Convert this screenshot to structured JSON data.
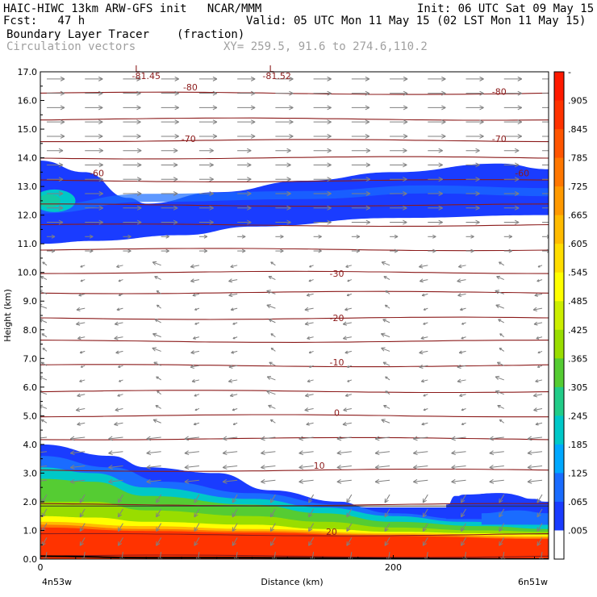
{
  "header": {
    "line1_left": "HAIC-HIWC 13km ARW-GFS init   NCAR/MMM",
    "line1_right": "Init: 06 UTC Sat 09 May 15",
    "line2_left": "Fcst:   47 h",
    "line2_right": "Valid: 05 UTC Mon 11 May 15 (02 LST Mon 11 May 15)",
    "line3_left": "Boundary Layer Tracer",
    "line3_mid": "(fraction)",
    "line4_left": "Circulation vectors",
    "line4_mid": "XY= 259.5, 91.6 to 274.6,110.2"
  },
  "colors": {
    "contour": "#8b1a1a",
    "vector": "#808080"
  },
  "chart_data": {
    "type": "heatmap",
    "title": "Boundary Layer Tracer",
    "units": "(fraction)",
    "xlabel": "Distance (km)",
    "ylabel": "Height (km)",
    "xlim": [
      0,
      288
    ],
    "ylim": [
      0,
      17
    ],
    "x_ticks": [
      0,
      200
    ],
    "x_end_labels": {
      "left": "4n53w",
      "right": "6n51w"
    },
    "y_ticks": [
      "0.0",
      "1.0",
      "2.0",
      "3.0",
      "4.0",
      "5.0",
      "6.0",
      "7.0",
      "8.0",
      "9.0",
      "10.0",
      "11.0",
      "12.0",
      "13.0",
      "14.0",
      "15.0",
      "16.0",
      "17.0"
    ],
    "colorbar": {
      "labels": [
        "-",
        ".905",
        ".845",
        ".785",
        ".725",
        ".665",
        ".605",
        ".545",
        ".485",
        ".425",
        ".365",
        ".305",
        ".245",
        ".185",
        ".125",
        ".065",
        ".005"
      ],
      "colors": [
        "#ff1a00",
        "#ff3300",
        "#ff5500",
        "#ff7700",
        "#ff9900",
        "#ffbb00",
        "#ffdd00",
        "#ffff00",
        "#ccee00",
        "#99dd00",
        "#55cc33",
        "#22cc88",
        "#00c8c8",
        "#00a8ff",
        "#1a6cff",
        "#1a3cff",
        "#ffffff"
      ]
    },
    "contour_labels": [
      {
        "text": "-81.45",
        "x": 60,
        "y": 16.75
      },
      {
        "text": "-81.52",
        "x": 134,
        "y": 16.75
      },
      {
        "text": "L",
        "x": 55,
        "y": 17.0
      },
      {
        "text": "L",
        "x": 131,
        "y": 17.0
      },
      {
        "text": "-80",
        "x": 85,
        "y": 16.35
      },
      {
        "text": "-80",
        "x": 260,
        "y": 16.2
      },
      {
        "text": "-70",
        "x": 84,
        "y": 14.55
      },
      {
        "text": "-70",
        "x": 260,
        "y": 14.55
      },
      {
        "text": "-60",
        "x": 32,
        "y": 13.35
      },
      {
        "text": "-60",
        "x": 273,
        "y": 13.35
      },
      {
        "text": "-30",
        "x": 168,
        "y": 9.85
      },
      {
        "text": "-20",
        "x": 168,
        "y": 8.3
      },
      {
        "text": "-10",
        "x": 168,
        "y": 6.75
      },
      {
        "text": "0",
        "x": 168,
        "y": 5.0
      },
      {
        "text": "10",
        "x": 158,
        "y": 3.15
      },
      {
        "text": "20",
        "x": 165,
        "y": 0.85
      }
    ],
    "temperature_contour_heights": [
      0.1,
      0.85,
      1.9,
      3.1,
      4.2,
      5.0,
      5.85,
      6.75,
      7.6,
      8.4,
      9.3,
      10.0,
      10.8,
      11.65,
      12.35,
      13.2,
      14.0,
      14.6,
      15.35,
      16.25
    ],
    "upper_layer": {
      "bottom": [
        [
          0,
          11.0
        ],
        [
          30,
          11.1
        ],
        [
          80,
          11.3
        ],
        [
          120,
          11.6
        ],
        [
          200,
          11.9
        ],
        [
          288,
          12.0
        ]
      ],
      "top": [
        [
          0,
          13.9
        ],
        [
          25,
          13.5
        ],
        [
          50,
          12.6
        ],
        [
          60,
          12.4
        ],
        [
          100,
          12.8
        ],
        [
          150,
          13.2
        ],
        [
          200,
          13.5
        ],
        [
          260,
          13.8
        ],
        [
          288,
          13.6
        ]
      ],
      "core": [
        [
          0,
          12.5
        ],
        [
          20,
          13.0
        ],
        [
          35,
          12.6
        ],
        [
          28,
          12.2
        ]
      ]
    },
    "lower_layer": {
      "top": [
        [
          0,
          4.0
        ],
        [
          40,
          3.6
        ],
        [
          60,
          3.2
        ],
        [
          100,
          3.0
        ],
        [
          130,
          2.4
        ],
        [
          170,
          2.0
        ],
        [
          185,
          1.8
        ],
        [
          200,
          1.8
        ],
        [
          230,
          1.8
        ],
        [
          235,
          2.2
        ],
        [
          260,
          2.3
        ],
        [
          288,
          2.0
        ]
      ]
    }
  }
}
